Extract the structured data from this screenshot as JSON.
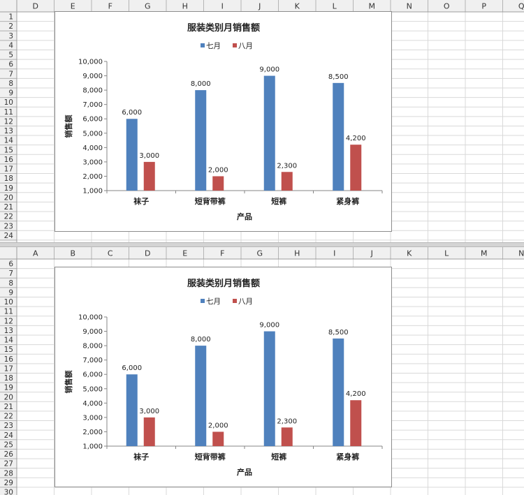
{
  "top_pane": {
    "columns": [
      "D",
      "E",
      "F",
      "G",
      "H",
      "I",
      "J",
      "K",
      "L",
      "M",
      "N",
      "O",
      "P",
      "Q"
    ],
    "rows": [
      "1",
      "2",
      "3",
      "4",
      "5",
      "6",
      "7",
      "8",
      "9",
      "10",
      "11",
      "12",
      "13",
      "14",
      "15",
      "16",
      "17",
      "18",
      "19",
      "20",
      "21",
      "22",
      "23",
      "24"
    ]
  },
  "bottom_pane": {
    "columns": [
      "A",
      "B",
      "C",
      "D",
      "E",
      "F",
      "G",
      "H",
      "I",
      "J",
      "K",
      "L",
      "M",
      "N"
    ],
    "rows": [
      "6",
      "7",
      "8",
      "9",
      "10",
      "11",
      "12",
      "13",
      "14",
      "15",
      "16",
      "17",
      "18",
      "19",
      "20",
      "21",
      "22",
      "23",
      "24",
      "25",
      "26",
      "27",
      "28",
      "29",
      "30"
    ]
  },
  "colors": {
    "series_1": "#4F81BD",
    "series_2": "#C0504D",
    "header_bg": "#F0F0F0",
    "gridline": "#D9D9D9"
  },
  "chart_data": {
    "type": "bar",
    "title": "服装类别月销售额",
    "xlabel": "产品",
    "ylabel": "销售额",
    "categories": [
      "袜子",
      "短背带裤",
      "短裤",
      "紧身裤"
    ],
    "series": [
      {
        "name": "七月",
        "values": [
          6000,
          8000,
          9000,
          8500
        ],
        "labels": [
          "6,000",
          "8,000",
          "9,000",
          "8,500"
        ]
      },
      {
        "name": "八月",
        "values": [
          3000,
          2000,
          2300,
          4200
        ],
        "labels": [
          "3,000",
          "2,000",
          "2,300",
          "4,200"
        ]
      }
    ],
    "ylim": [
      1000,
      10000
    ],
    "yticks": [
      1000,
      2000,
      3000,
      4000,
      5000,
      6000,
      7000,
      8000,
      9000,
      10000
    ],
    "ytick_labels": [
      "1,000",
      "2,000",
      "3,000",
      "4,000",
      "5,000",
      "6,000",
      "7,000",
      "8,000",
      "9,000",
      "10,000"
    ],
    "legend_position": "top",
    "grid": false
  }
}
